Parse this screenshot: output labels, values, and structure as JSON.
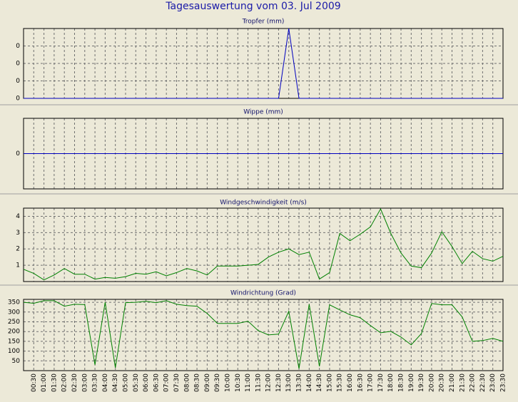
{
  "title": "Tagesauswertung vom 03. Jul 2009",
  "chart_data": [
    {
      "type": "line",
      "title": "Tropfer (mm)",
      "color": "#0000c0",
      "grid": true,
      "ylim": [
        0,
        0.4
      ],
      "yticks": [
        0,
        {
          "value": 0.1,
          "label": "0"
        },
        {
          "value": 0.2,
          "label": "0"
        },
        {
          "value": 0.3,
          "label": "0"
        }
      ],
      "values": [
        0,
        0,
        0,
        0,
        0,
        0,
        0,
        0,
        0,
        0,
        0,
        0,
        0,
        0,
        0,
        0,
        0,
        0,
        0,
        0,
        0,
        0,
        0,
        0,
        0,
        0,
        0.4,
        0,
        0,
        0,
        0,
        0,
        0,
        0,
        0,
        0,
        0,
        0,
        0,
        0,
        0,
        0,
        0,
        0,
        0,
        0,
        0,
        0
      ]
    },
    {
      "type": "line",
      "title": "Wippe (mm)",
      "color": "#0000c0",
      "grid": true,
      "ylim": [
        -1,
        1
      ],
      "yticks": [
        0
      ],
      "values": [
        0,
        0,
        0,
        0,
        0,
        0,
        0,
        0,
        0,
        0,
        0,
        0,
        0,
        0,
        0,
        0,
        0,
        0,
        0,
        0,
        0,
        0,
        0,
        0,
        0,
        0,
        0,
        0,
        0,
        0,
        0,
        0,
        0,
        0,
        0,
        0,
        0,
        0,
        0,
        0,
        0,
        0,
        0,
        0,
        0,
        0,
        0,
        0
      ]
    },
    {
      "type": "line",
      "title": "Windgeschwindigkeit (m/s)",
      "color": "#008000",
      "grid": true,
      "ylim": [
        0,
        4.5
      ],
      "yticks": [
        1,
        2,
        3,
        4
      ],
      "values": [
        0.75,
        0.5,
        0.1,
        0.4,
        0.8,
        0.45,
        0.45,
        0.15,
        0.25,
        0.2,
        0.3,
        0.5,
        0.45,
        0.6,
        0.35,
        0.55,
        0.8,
        0.65,
        0.4,
        0.95,
        0.95,
        0.95,
        1.0,
        1.05,
        1.5,
        1.8,
        2.0,
        1.65,
        1.8,
        0.15,
        0.55,
        2.95,
        2.5,
        2.9,
        3.35,
        4.45,
        2.95,
        1.75,
        0.95,
        0.85,
        1.75,
        3.05,
        2.15,
        1.1,
        1.85,
        1.4,
        1.25,
        1.55
      ]
    },
    {
      "type": "line",
      "title": "Windrichtung (Grad)",
      "color": "#008000",
      "grid": true,
      "ylim": [
        0,
        365
      ],
      "yticks": [
        50,
        100,
        150,
        200,
        250,
        300,
        350
      ],
      "categories": [
        null,
        "00:30",
        "01:00",
        "01:30",
        "02:00",
        "02:30",
        "03:00",
        "03:30",
        "04:00",
        "04:30",
        "05:00",
        "05:30",
        "06:00",
        "06:30",
        "07:00",
        "07:30",
        "08:00",
        "08:30",
        "09:00",
        "09:30",
        "10:00",
        "10:30",
        "11:00",
        "11:30",
        "12:00",
        "12:30",
        "13:00",
        "13:30",
        "14:00",
        "14:30",
        "15:00",
        "15:30",
        "16:00",
        "16:30",
        "17:00",
        "17:30",
        "18:00",
        "18:30",
        "19:00",
        "19:30",
        "20:00",
        "20:30",
        "21:00",
        "21:30",
        "22:00",
        "22:30",
        "23:00",
        "23:30"
      ],
      "values": [
        350,
        345,
        358,
        358,
        330,
        340,
        338,
        30,
        350,
        15,
        348,
        350,
        355,
        348,
        358,
        340,
        333,
        330,
        293,
        242,
        242,
        242,
        253,
        205,
        183,
        187,
        304,
        10,
        340,
        22,
        337,
        311,
        286,
        271,
        231,
        194,
        201,
        172,
        132,
        190,
        344,
        337,
        337,
        275,
        150,
        154,
        165,
        150
      ]
    }
  ]
}
